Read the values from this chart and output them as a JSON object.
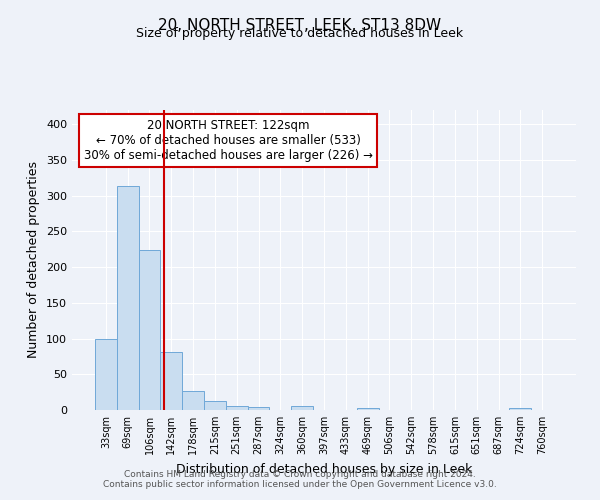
{
  "title": "20, NORTH STREET, LEEK, ST13 8DW",
  "subtitle": "Size of property relative to detached houses in Leek",
  "xlabel": "Distribution of detached houses by size in Leek",
  "ylabel": "Number of detached properties",
  "bar_labels": [
    "33sqm",
    "69sqm",
    "106sqm",
    "142sqm",
    "178sqm",
    "215sqm",
    "251sqm",
    "287sqm",
    "324sqm",
    "360sqm",
    "397sqm",
    "433sqm",
    "469sqm",
    "506sqm",
    "542sqm",
    "578sqm",
    "615sqm",
    "651sqm",
    "687sqm",
    "724sqm",
    "760sqm"
  ],
  "bar_values": [
    99,
    313,
    224,
    81,
    26,
    13,
    5,
    4,
    0,
    6,
    0,
    0,
    3,
    0,
    0,
    0,
    0,
    0,
    0,
    3,
    0
  ],
  "bar_color": "#c9ddf0",
  "bar_edgecolor": "#6fa8d8",
  "bar_width": 1.0,
  "vline_x": 2.67,
  "vline_color": "#cc0000",
  "annotation_text": "20 NORTH STREET: 122sqm\n← 70% of detached houses are smaller (533)\n30% of semi-detached houses are larger (226) →",
  "annotation_box_edgecolor": "#cc0000",
  "annotation_box_facecolor": "#ffffff",
  "ylim": [
    0,
    420
  ],
  "yticks": [
    0,
    50,
    100,
    150,
    200,
    250,
    300,
    350,
    400
  ],
  "title_fontsize": 11,
  "subtitle_fontsize": 9,
  "xlabel_fontsize": 9,
  "ylabel_fontsize": 9,
  "footer_line1": "Contains HM Land Registry data © Crown copyright and database right 2024.",
  "footer_line2": "Contains public sector information licensed under the Open Government Licence v3.0.",
  "background_color": "#eef2f9",
  "grid_color": "#ffffff",
  "annotation_fontsize": 8.5
}
